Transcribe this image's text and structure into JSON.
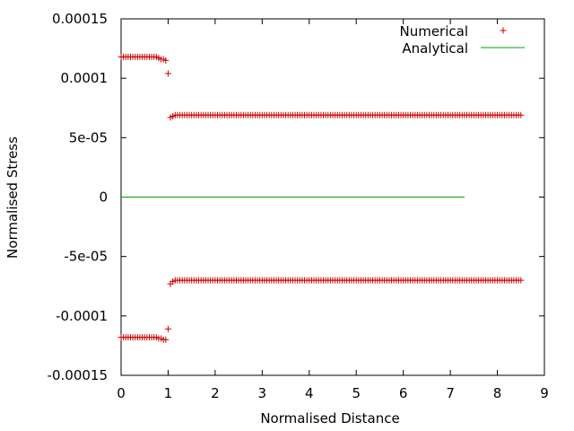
{
  "chart_data": {
    "type": "scatter",
    "title": "",
    "xlabel": "Normalised Distance",
    "ylabel": "Normalised Stress",
    "xlim": [
      0,
      9
    ],
    "ylim": [
      -0.00015,
      0.00015
    ],
    "xticks": [
      0,
      1,
      2,
      3,
      4,
      5,
      6,
      7,
      8,
      9
    ],
    "xtick_labels": [
      "0",
      "1",
      "2",
      "3",
      "4",
      "5",
      "6",
      "7",
      "8",
      "9"
    ],
    "yticks": [
      0.00015,
      0.0001,
      5e-05,
      0,
      -5e-05,
      -0.0001,
      -0.00015
    ],
    "ytick_labels": [
      "0.00015",
      "0.0001",
      "5e-05",
      "0",
      "-5e-05",
      "-0.0001",
      "-0.00015"
    ],
    "grid": false,
    "legend_position": "top-right",
    "series": [
      {
        "name": "Numerical",
        "kind": "points",
        "color": "#cc0000",
        "marker": "+",
        "pattern": [
          {
            "x_from": 0.0,
            "x_to": 0.7,
            "step": 0.05,
            "y": 0.000118
          },
          {
            "x": [
              0.75,
              0.8,
              0.85,
              0.9,
              0.95,
              1.0
            ],
            "y": [
              0.000118,
              0.000117,
              0.000116,
              0.000116,
              0.000115,
              0.000104
            ]
          },
          {
            "x": [
              1.05,
              1.1
            ],
            "y": [
              6.7e-05,
              6.8e-05
            ]
          },
          {
            "x_from": 1.15,
            "x_to": 8.5,
            "step": 0.05,
            "y": 6.9e-05
          },
          {
            "x_from": 0.0,
            "x_to": 0.7,
            "step": 0.05,
            "y": -0.000118
          },
          {
            "x": [
              0.75,
              0.8,
              0.85,
              0.9,
              0.95,
              1.0
            ],
            "y": [
              -0.000118,
              -0.000119,
              -0.000119,
              -0.00012,
              -0.00012,
              -0.000111
            ]
          },
          {
            "x": [
              1.05,
              1.1
            ],
            "y": [
              -7.3e-05,
              -7.1e-05
            ]
          },
          {
            "x_from": 1.15,
            "x_to": 8.5,
            "step": 0.05,
            "y": -7e-05
          }
        ]
      },
      {
        "name": "Analytical",
        "kind": "line",
        "color": "#00a000",
        "x": [
          0,
          7.3
        ],
        "y": [
          0,
          0
        ]
      }
    ]
  }
}
